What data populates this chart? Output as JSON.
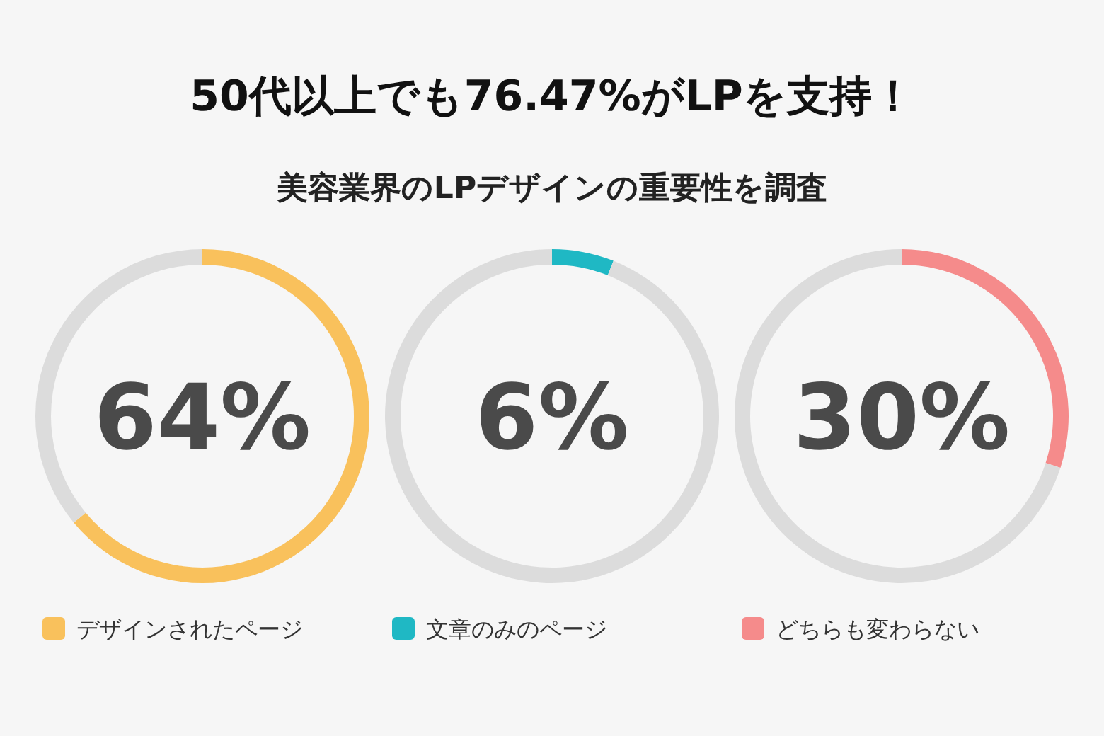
{
  "chart_data": [
    {
      "type": "donut",
      "title": "50代以上でも76.47%がLPを支持！",
      "subtitle": "美容業界のLPデザインの重要性を調査",
      "categories": [
        "デザインされたページ",
        null
      ],
      "values": [
        64,
        36
      ],
      "colors": [
        "#f9c15c",
        "#dcdcdc"
      ],
      "annotations": [
        "64%"
      ],
      "legend": "bottom"
    },
    {
      "type": "donut",
      "categories": [
        "文章のみのページ",
        null
      ],
      "values": [
        6,
        94
      ],
      "colors": [
        "#1fb8c4",
        "#dcdcdc"
      ],
      "annotations": [
        "6%"
      ],
      "legend": "bottom"
    },
    {
      "type": "donut",
      "categories": [
        "どちらも変わらない",
        null
      ],
      "values": [
        30,
        70
      ],
      "colors": [
        "#f58b8b",
        "#dcdcdc"
      ],
      "annotations": [
        "30%"
      ],
      "legend": "bottom"
    }
  ]
}
